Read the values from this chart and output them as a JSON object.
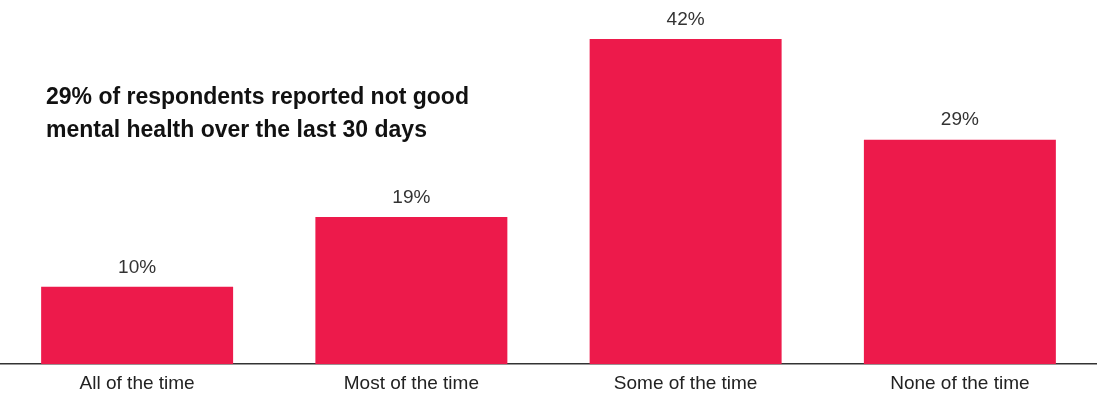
{
  "chart_data": {
    "type": "bar",
    "categories": [
      "All of the time",
      "Most of the time",
      "Some of the time",
      "None of the time"
    ],
    "values": [
      10,
      19,
      42,
      29
    ],
    "color": "#ed1a4b",
    "data_labels": true,
    "value_labels": [
      "10%",
      "19%",
      "42%",
      "29%"
    ],
    "grid": false,
    "legend": false,
    "annotations": [
      "29% of respondents reported not good mental health over the last 30 days"
    ]
  }
}
